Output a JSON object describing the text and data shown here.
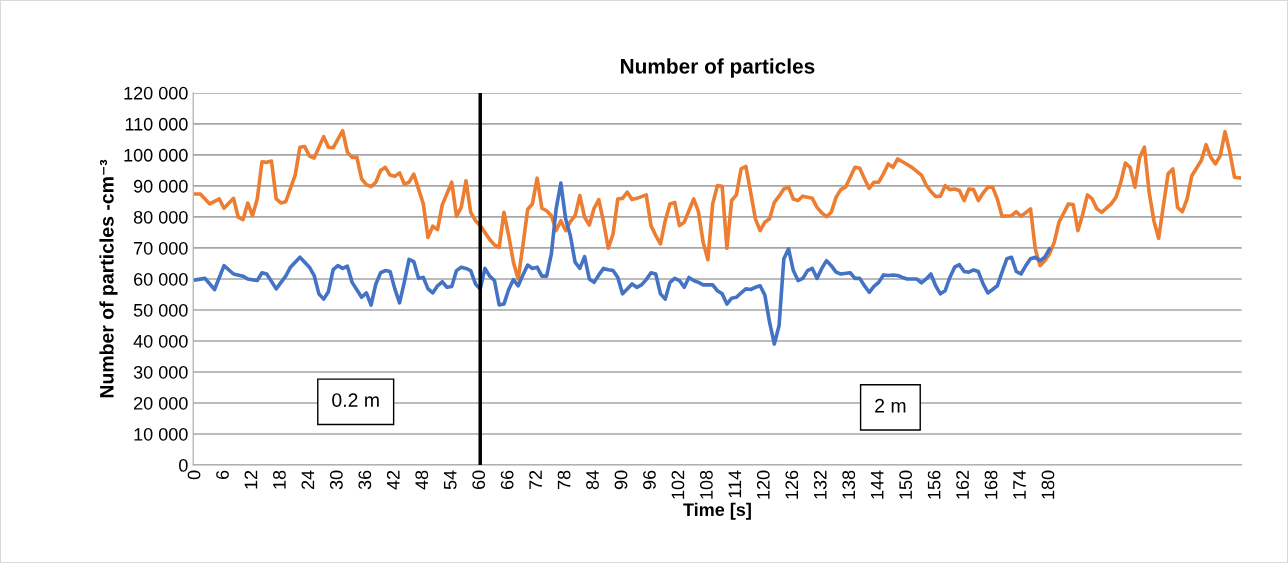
{
  "chart_data": {
    "type": "line",
    "title": "Number of particles",
    "xlabel": "Time [s]",
    "ylabel": "Number of particles -cm⁻³",
    "xlim": [
      -0.5,
      220.5
    ],
    "xticks": [
      0,
      6,
      12,
      18,
      24,
      30,
      36,
      42,
      48,
      54,
      60,
      66,
      72,
      78,
      84,
      90,
      96,
      102,
      108,
      114,
      120,
      126,
      132,
      138,
      144,
      150,
      156,
      162,
      168,
      174,
      180
    ],
    "ylim": [
      0,
      120000
    ],
    "yticks": [
      {
        "value": 0,
        "label": "0"
      },
      {
        "value": 10000,
        "label": "10 000"
      },
      {
        "value": 20000,
        "label": "20 000"
      },
      {
        "value": 30000,
        "label": "30 000"
      },
      {
        "value": 40000,
        "label": "40 000"
      },
      {
        "value": 50000,
        "label": "50 000"
      },
      {
        "value": 60000,
        "label": "60 000"
      },
      {
        "value": 70000,
        "label": "70 000"
      },
      {
        "value": 80000,
        "label": "80 000"
      },
      {
        "value": 90000,
        "label": "90 000"
      },
      {
        "value": 100000,
        "label": "100 000"
      },
      {
        "value": 110000,
        "label": "110 000"
      },
      {
        "value": 120000,
        "label": "120 000"
      }
    ],
    "grid": "y",
    "legend": false,
    "marker": "none",
    "line_style": "solid",
    "series": [
      {
        "color": "#ed7d31",
        "x": [
          0,
          1,
          3,
          5,
          6,
          8,
          9,
          10,
          11,
          12,
          13,
          14,
          15,
          16,
          17,
          18,
          19,
          21,
          22,
          23,
          24,
          25,
          27,
          28,
          29,
          31,
          32,
          33,
          34,
          35,
          36,
          37,
          38,
          39,
          40,
          41,
          42,
          43,
          44,
          45,
          46,
          48,
          49,
          50,
          51,
          52,
          54,
          55,
          56,
          57,
          58,
          59,
          60,
          62,
          63,
          64,
          65,
          66,
          67,
          68,
          69,
          70,
          71,
          72,
          73,
          74,
          75,
          76,
          77,
          78,
          79,
          80,
          81,
          82,
          83,
          84,
          85,
          86,
          87,
          88,
          89,
          90,
          91,
          92,
          93,
          95,
          96,
          97,
          98,
          99,
          100,
          101,
          102,
          103,
          105,
          106,
          107,
          108,
          109,
          110,
          111,
          112,
          113,
          114,
          115,
          116,
          117,
          118,
          119,
          120,
          121,
          122,
          123,
          124,
          125,
          126,
          127,
          128,
          130,
          131,
          132,
          133,
          134,
          135,
          136,
          137,
          138,
          139,
          140,
          141,
          142,
          143,
          144,
          145,
          146,
          147,
          148,
          149,
          150,
          151,
          153,
          154,
          155,
          156,
          157,
          158,
          159,
          160,
          161,
          162,
          163,
          164,
          165,
          166,
          167,
          168,
          169,
          170,
          172,
          173,
          174,
          176,
          177,
          178,
          179,
          180,
          181,
          182,
          184,
          185,
          186,
          187,
          188,
          189,
          190,
          191,
          193,
          194,
          195,
          196,
          197,
          198,
          199,
          200,
          201,
          202,
          203,
          205,
          206,
          207,
          208,
          209,
          210,
          212,
          213,
          214,
          215,
          216,
          217,
          218,
          219,
          220
        ],
        "values": [
          87400,
          87400,
          84200,
          85800,
          82800,
          86000,
          79900,
          79100,
          84500,
          80400,
          85800,
          97800,
          97600,
          98000,
          85800,
          84500,
          84900,
          93500,
          102500,
          102700,
          99600,
          99000,
          105900,
          102500,
          102300,
          107800,
          100900,
          99200,
          99200,
          92300,
          90400,
          89800,
          91200,
          95000,
          96000,
          93500,
          93100,
          94200,
          90600,
          91200,
          93800,
          84200,
          73400,
          77000,
          75900,
          83900,
          91200,
          80200,
          83100,
          91700,
          81500,
          78800,
          77200,
          72700,
          71000,
          70200,
          81500,
          74000,
          65400,
          60000,
          70800,
          82400,
          84200,
          92500,
          82800,
          82000,
          80400,
          75600,
          78800,
          75600,
          78500,
          80400,
          86900,
          79900,
          77400,
          82800,
          85600,
          78300,
          69900,
          74500,
          85800,
          86000,
          88000,
          85600,
          86000,
          87100,
          77200,
          74000,
          71300,
          78800,
          84200,
          84700,
          77200,
          78300,
          85800,
          81700,
          71800,
          66200,
          84200,
          90100,
          89900,
          69900,
          85300,
          87100,
          95500,
          96300,
          88000,
          79400,
          75600,
          78300,
          79400,
          84700,
          86700,
          89000,
          89600,
          85800,
          85300,
          86700,
          86000,
          83100,
          81300,
          80100,
          81500,
          86300,
          88800,
          89600,
          92800,
          96000,
          95700,
          92300,
          89200,
          91200,
          91200,
          93900,
          97100,
          96000,
          98700,
          97800,
          96900,
          96000,
          93500,
          90300,
          88200,
          86600,
          86700,
          90100,
          88800,
          89000,
          88500,
          85300,
          89000,
          88800,
          85300,
          87700,
          89600,
          89600,
          85800,
          80200,
          80400,
          81700,
          80200,
          82600,
          69700,
          64300,
          65900,
          68100,
          71800,
          78300,
          84200,
          84000,
          75600,
          80900,
          87100,
          85800,
          82600,
          81500,
          84200,
          86300,
          91000,
          97400,
          96000,
          89600,
          99200,
          102500,
          88000,
          78800,
          73100,
          93900,
          95500,
          83100,
          81700,
          85800,
          93300,
          98200,
          103300,
          99200,
          97100,
          99800,
          107500,
          100900,
          92800,
          92600
        ]
      },
      {
        "color": "#4472c4",
        "x": [
          0,
          2,
          4,
          6,
          8,
          10,
          11,
          13,
          14,
          15,
          17,
          19,
          20,
          22,
          24,
          25,
          26,
          27,
          28,
          29,
          30,
          31,
          32,
          33,
          35,
          36,
          37,
          38,
          39,
          40,
          41,
          42,
          43,
          44,
          45,
          46,
          47,
          48,
          49,
          50,
          51,
          52,
          53,
          54,
          55,
          56,
          57,
          58,
          59,
          60,
          61,
          62,
          63,
          64,
          65,
          66,
          67,
          68,
          69,
          70,
          71,
          72,
          73,
          74,
          75,
          76,
          77,
          78,
          79,
          80,
          81,
          82,
          83,
          84,
          85,
          86,
          87,
          88,
          89,
          90,
          91,
          92,
          93,
          94,
          95,
          96,
          97,
          98,
          99,
          100,
          101,
          102,
          103,
          104,
          105,
          106,
          107,
          109,
          110,
          111,
          112,
          113,
          114,
          115,
          116,
          117,
          118,
          119,
          120,
          121,
          122,
          123,
          124,
          125,
          126,
          127,
          128,
          129,
          130,
          131,
          132,
          133,
          134,
          135,
          136,
          138,
          139,
          140,
          141,
          142,
          143,
          144,
          145,
          146,
          147,
          148,
          149,
          150,
          152,
          153,
          154,
          155,
          156,
          157,
          158,
          159,
          160,
          161,
          162,
          163,
          164,
          165,
          166,
          167,
          168,
          169,
          170,
          171,
          172,
          173,
          174,
          175,
          176,
          177,
          178,
          179,
          180
        ],
        "values": [
          59700,
          60200,
          56600,
          64300,
          61600,
          60900,
          60000,
          59500,
          62000,
          61600,
          56800,
          60900,
          63800,
          67000,
          63800,
          61100,
          55200,
          53500,
          55900,
          63000,
          64300,
          63400,
          64100,
          58900,
          54100,
          55500,
          51600,
          58400,
          62000,
          62700,
          62400,
          56800,
          52300,
          59000,
          66300,
          65600,
          60200,
          60500,
          56800,
          55500,
          57800,
          59100,
          57300,
          57600,
          62700,
          63800,
          63400,
          62700,
          58400,
          56800,
          63400,
          60900,
          59500,
          51600,
          51900,
          56600,
          59800,
          57800,
          61300,
          64500,
          63400,
          63800,
          60900,
          60900,
          68100,
          82600,
          90900,
          79400,
          74000,
          65400,
          63400,
          67200,
          60000,
          58900,
          61300,
          63400,
          63000,
          62700,
          60500,
          55200,
          56800,
          58400,
          57300,
          58100,
          59800,
          62000,
          61600,
          55200,
          53500,
          58900,
          60200,
          59500,
          57300,
          60500,
          59500,
          58900,
          58100,
          58100,
          56200,
          55200,
          51900,
          53800,
          54100,
          55500,
          56800,
          56600,
          57300,
          57800,
          54800,
          46000,
          39000,
          45000,
          66500,
          69700,
          62700,
          59500,
          60200,
          62700,
          63400,
          60200,
          63400,
          65900,
          64300,
          62200,
          61600,
          62000,
          60200,
          60200,
          57800,
          55700,
          57600,
          58900,
          61300,
          61100,
          61300,
          61100,
          60500,
          60000,
          60000,
          58700,
          60000,
          61600,
          57800,
          55200,
          56200,
          60500,
          63800,
          64600,
          62400,
          62200,
          62900,
          62400,
          58400,
          55500,
          56600,
          57800,
          62200,
          66500,
          67000,
          62400,
          61600,
          64300,
          66500,
          67000,
          65900,
          67000,
          69700
        ]
      }
    ],
    "ref_lines": [
      {
        "axis": "x",
        "value": 60,
        "color": "#000000",
        "line_style": "solid"
      }
    ],
    "annotations": [
      "0.2 m",
      "2 m"
    ]
  }
}
